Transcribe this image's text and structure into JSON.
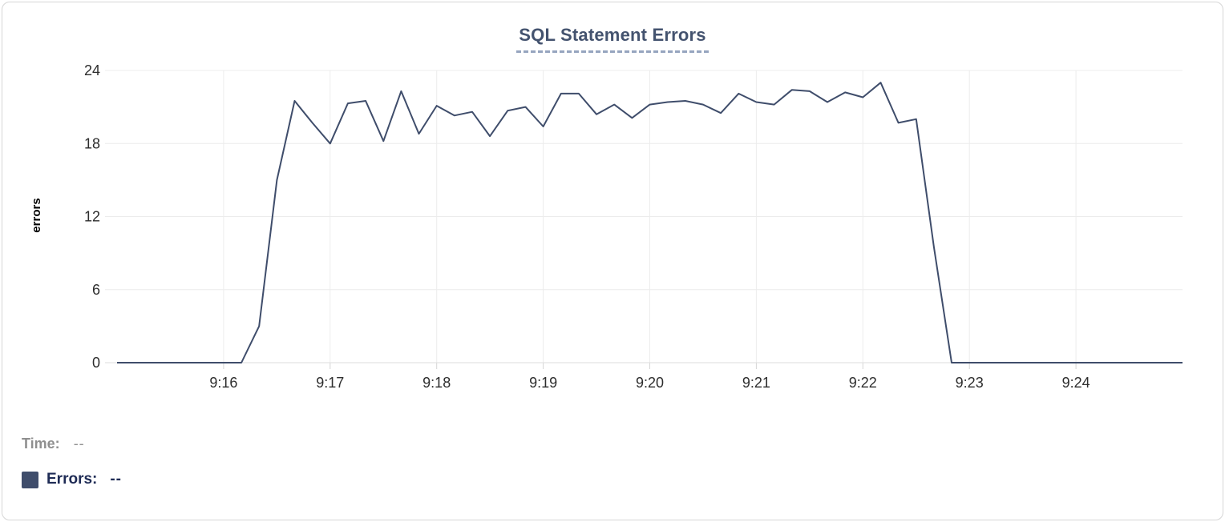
{
  "chart_data": {
    "type": "line",
    "title": "SQL Statement Errors",
    "xlabel": "",
    "ylabel": "errors",
    "ylim": [
      0,
      24
    ],
    "y_ticks": [
      0,
      6,
      12,
      18,
      24
    ],
    "x_tick_labels": [
      "9:16",
      "9:17",
      "9:18",
      "9:19",
      "9:20",
      "9:21",
      "9:22",
      "9:23",
      "9:24"
    ],
    "x_tick_times": [
      "9:16:00",
      "9:17:00",
      "9:18:00",
      "9:19:00",
      "9:20:00",
      "9:21:00",
      "9:22:00",
      "9:23:00",
      "9:24:00"
    ],
    "x_range": [
      "9:15:00",
      "9:25:00"
    ],
    "grid": true,
    "legend_position": "bottom-left",
    "series": [
      {
        "name": "Errors",
        "color": "#3f4d6b",
        "x": [
          "9:15:00",
          "9:15:10",
          "9:15:20",
          "9:15:30",
          "9:15:40",
          "9:15:50",
          "9:16:00",
          "9:16:10",
          "9:16:20",
          "9:16:30",
          "9:16:40",
          "9:16:50",
          "9:17:00",
          "9:17:10",
          "9:17:20",
          "9:17:30",
          "9:17:40",
          "9:17:50",
          "9:18:00",
          "9:18:10",
          "9:18:20",
          "9:18:30",
          "9:18:40",
          "9:18:50",
          "9:19:00",
          "9:19:10",
          "9:19:20",
          "9:19:30",
          "9:19:40",
          "9:19:50",
          "9:20:00",
          "9:20:10",
          "9:20:20",
          "9:20:30",
          "9:20:40",
          "9:20:50",
          "9:21:00",
          "9:21:10",
          "9:21:20",
          "9:21:30",
          "9:21:40",
          "9:21:50",
          "9:22:00",
          "9:22:10",
          "9:22:20",
          "9:22:30",
          "9:22:40",
          "9:22:50",
          "9:23:00",
          "9:23:10",
          "9:23:20",
          "9:23:30",
          "9:23:40",
          "9:23:50",
          "9:24:00",
          "9:24:10",
          "9:24:20",
          "9:24:30",
          "9:24:40",
          "9:24:50",
          "9:25:00"
        ],
        "values": [
          0,
          0,
          0,
          0,
          0,
          0,
          0,
          0,
          3,
          15,
          21.5,
          19.7,
          18,
          21.3,
          21.5,
          18.2,
          22.3,
          18.8,
          21.1,
          20.3,
          20.6,
          18.6,
          20.7,
          21,
          19.4,
          22.1,
          22.1,
          20.4,
          21.2,
          20.1,
          21.2,
          21.4,
          21.5,
          21.2,
          20.5,
          22.1,
          21.4,
          21.2,
          22.4,
          22.3,
          21.4,
          22.2,
          21.8,
          23,
          19.7,
          20,
          9.5,
          0,
          0,
          0,
          0,
          0,
          0,
          0,
          0,
          0,
          0,
          0,
          0,
          0,
          0
        ]
      }
    ]
  },
  "footer": {
    "time_label": "Time:",
    "time_value": "--",
    "errors_label": "Errors:",
    "errors_value": "--",
    "swatch_color": "#3f4d6b"
  },
  "colors": {
    "title": "#44536f",
    "title_underline": "#96a5bf",
    "gridline": "#ececec",
    "axis_line": "#dedede",
    "tick_mark": "#d6d6d6",
    "tick_text": "#2d2d2d",
    "axis_name_text": "#000000"
  }
}
